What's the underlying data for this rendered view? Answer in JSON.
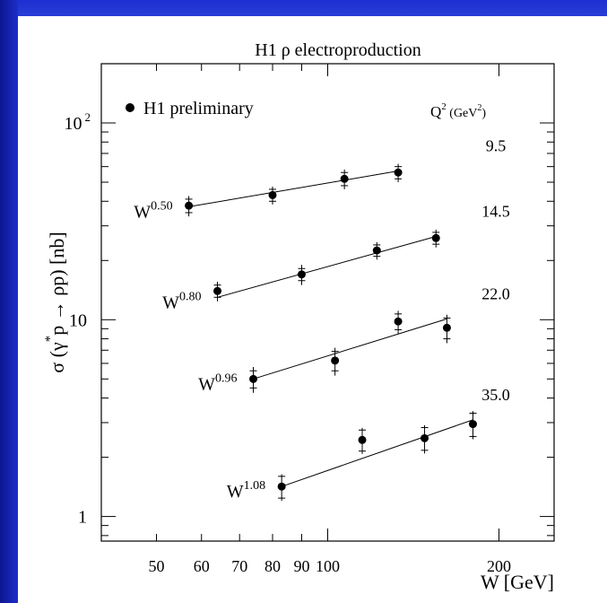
{
  "chart_data": {
    "type": "scatter",
    "title": "H1 ρ  electroproduction",
    "xlabel": "W  [GeV]",
    "ylabel": "σ (γ* p → ρp)  [nb]",
    "ylabel_parts": {
      "sigma": "σ (γ",
      "star": "*",
      "rest": "p → ρp)  [nb]"
    },
    "xscale": "log",
    "yscale": "log",
    "xlim": [
      40,
      250
    ],
    "ylim": [
      0.75,
      200
    ],
    "xticklabels": [
      {
        "value": 50,
        "label": "50"
      },
      {
        "value": 60,
        "label": "60"
      },
      {
        "value": 70,
        "label": "70"
      },
      {
        "value": 80,
        "label": "80"
      },
      {
        "value": 90,
        "label": "90"
      },
      {
        "value": 100,
        "label": "100"
      },
      {
        "value": 200,
        "label": "200"
      }
    ],
    "yticklabels": [
      {
        "value": 1,
        "label": "1",
        "exp": ""
      },
      {
        "value": 10,
        "label": "10",
        "exp": ""
      },
      {
        "value": 100,
        "label": "10",
        "exp": "2"
      }
    ],
    "legend": {
      "label": "H1 preliminary",
      "position": "top-left"
    },
    "q2_header": {
      "base": "Q",
      "exp": "2",
      "unit_open": " (GeV",
      "unit_exp": "2",
      "unit_close": ")"
    },
    "grid": false,
    "series": [
      {
        "q2": "9.5",
        "fit_label": {
          "base": "W",
          "exp": "0.50"
        },
        "fit": {
          "x": [
            57,
            133
          ],
          "y": [
            37.5,
            57
          ]
        },
        "points": [
          {
            "x": 57,
            "y": 38,
            "err_stat": 3,
            "err_tot": 4.5
          },
          {
            "x": 80,
            "y": 43,
            "err_stat": 3,
            "err_tot": 4.5
          },
          {
            "x": 107,
            "y": 52,
            "err_stat": 4,
            "err_tot": 6
          },
          {
            "x": 133,
            "y": 56,
            "err_stat": 4,
            "err_tot": 6
          }
        ]
      },
      {
        "q2": "14.5",
        "fit_label": {
          "base": "W",
          "exp": "0.80"
        },
        "fit": {
          "x": [
            64,
            155
          ],
          "y": [
            13,
            26.5
          ]
        },
        "points": [
          {
            "x": 64,
            "y": 14,
            "err_stat": 1,
            "err_tot": 1.6
          },
          {
            "x": 90,
            "y": 17,
            "err_stat": 1.2,
            "err_tot": 2
          },
          {
            "x": 122,
            "y": 22.5,
            "err_stat": 1.5,
            "err_tot": 2.3
          },
          {
            "x": 155,
            "y": 26,
            "err_stat": 1.8,
            "err_tot": 2.7
          }
        ]
      },
      {
        "q2": "22.0",
        "fit_label": {
          "base": "W",
          "exp": "0.96"
        },
        "fit": {
          "x": [
            74,
            162
          ],
          "y": [
            5.0,
            10.1
          ]
        },
        "points": [
          {
            "x": 74,
            "y": 5.0,
            "err_stat": 0.5,
            "err_tot": 0.75
          },
          {
            "x": 103,
            "y": 6.2,
            "err_stat": 0.7,
            "err_tot": 1.0
          },
          {
            "x": 133,
            "y": 9.8,
            "err_stat": 0.9,
            "err_tot": 1.3
          },
          {
            "x": 162,
            "y": 9.1,
            "err_stat": 1.1,
            "err_tot": 1.5
          }
        ]
      },
      {
        "q2": "35.0",
        "fit_label": {
          "base": "W",
          "exp": "1.08"
        },
        "fit": {
          "x": [
            83,
            180
          ],
          "y": [
            1.42,
            3.1
          ]
        },
        "points": [
          {
            "x": 83,
            "y": 1.42,
            "err_stat": 0.18,
            "err_tot": 0.22
          },
          {
            "x": 115,
            "y": 2.45,
            "err_stat": 0.3,
            "err_tot": 0.37
          },
          {
            "x": 148,
            "y": 2.5,
            "err_stat": 0.33,
            "err_tot": 0.41
          },
          {
            "x": 180,
            "y": 2.95,
            "err_stat": 0.4,
            "err_tot": 0.48
          }
        ]
      }
    ]
  }
}
